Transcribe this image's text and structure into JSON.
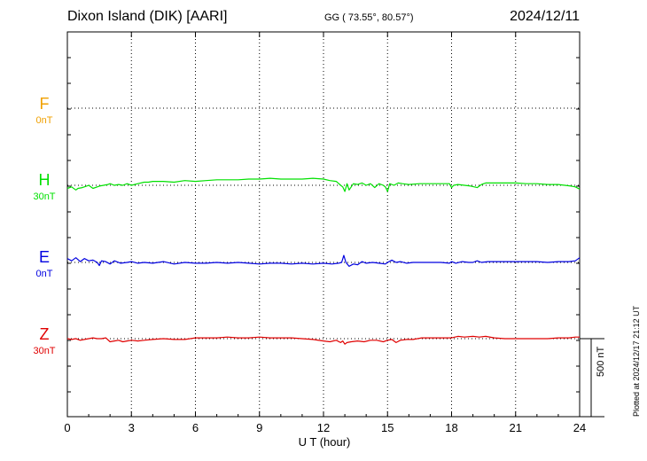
{
  "header": {
    "station": "Dixon Island (DIK)  [AARI]",
    "coords": "GG ( 73.55°,  80.57°)",
    "date": "2024/12/11"
  },
  "footer": {
    "plotted": "Plotted at 2024/12/17 21:12 UT",
    "scale": "500 nT"
  },
  "chart_data": {
    "type": "line",
    "xlabel": "U T (hour)",
    "xlim": [
      0,
      24
    ],
    "xticks": [
      0,
      3,
      6,
      9,
      12,
      15,
      18,
      21,
      24
    ],
    "grid": true,
    "scale_bar_nT": 500,
    "series": [
      {
        "name": "F",
        "baseline_label": "0nT",
        "color": "#f0a000",
        "x": [],
        "y": []
      },
      {
        "name": "H",
        "baseline_label": "30nT",
        "color": "#00e000",
        "x": [
          0.0,
          0.2,
          0.4,
          0.5,
          0.7,
          0.9,
          1.0,
          1.2,
          1.4,
          1.5,
          1.7,
          1.9,
          2.0,
          2.2,
          2.4,
          2.6,
          2.8,
          3.0,
          3.3,
          3.6,
          3.8,
          4.0,
          4.5,
          5.0,
          5.5,
          6.0,
          6.5,
          7.0,
          7.5,
          8.0,
          8.5,
          9.0,
          9.5,
          10.0,
          10.5,
          11.0,
          11.5,
          12.0,
          12.3,
          12.6,
          12.8,
          12.9,
          13.0,
          13.1,
          13.2,
          13.4,
          13.6,
          13.8,
          14.0,
          14.2,
          14.4,
          14.6,
          14.8,
          14.9,
          15.0,
          15.1,
          15.3,
          15.5,
          15.7,
          16.0,
          16.5,
          17.0,
          17.5,
          17.9,
          18.0,
          18.1,
          18.3,
          18.6,
          18.9,
          19.2,
          19.4,
          19.6,
          20.0,
          20.5,
          21.0,
          21.5,
          22.0,
          22.5,
          23.0,
          23.3,
          23.6,
          23.8,
          24.0
        ],
        "y": [
          -20,
          -10,
          -30,
          -20,
          -15,
          -5,
          0,
          -20,
          -10,
          -5,
          0,
          5,
          10,
          0,
          5,
          0,
          10,
          0,
          10,
          20,
          20,
          25,
          25,
          20,
          30,
          25,
          30,
          35,
          35,
          35,
          40,
          40,
          45,
          40,
          40,
          40,
          45,
          40,
          30,
          25,
          0,
          -10,
          -40,
          10,
          -30,
          10,
          5,
          15,
          0,
          10,
          -15,
          10,
          0,
          -10,
          -40,
          10,
          0,
          15,
          10,
          5,
          10,
          10,
          10,
          10,
          -15,
          0,
          5,
          0,
          -5,
          -15,
          5,
          15,
          15,
          15,
          15,
          10,
          10,
          5,
          5,
          0,
          -5,
          -10,
          -25
        ]
      },
      {
        "name": "E",
        "baseline_label": "0nT",
        "color": "#0000e0",
        "x": [
          0.0,
          0.2,
          0.4,
          0.6,
          0.8,
          1.0,
          1.2,
          1.4,
          1.5,
          1.6,
          1.8,
          2.0,
          2.2,
          2.5,
          2.8,
          3.0,
          3.3,
          3.6,
          4.0,
          4.5,
          5.0,
          5.5,
          6.0,
          6.5,
          7.0,
          7.5,
          8.0,
          8.5,
          9.0,
          9.5,
          10.0,
          10.5,
          11.0,
          11.5,
          12.0,
          12.4,
          12.7,
          12.85,
          12.95,
          13.05,
          13.2,
          13.4,
          13.6,
          13.8,
          14.0,
          14.3,
          14.6,
          14.9,
          15.0,
          15.2,
          15.4,
          15.6,
          15.9,
          16.2,
          16.5,
          17.0,
          17.5,
          17.9,
          18.0,
          18.2,
          18.5,
          18.8,
          19.0,
          19.2,
          19.4,
          19.7,
          20.0,
          20.5,
          21.0,
          21.5,
          22.0,
          22.5,
          23.0,
          23.5,
          23.8,
          24.0
        ],
        "y": [
          25,
          10,
          30,
          5,
          25,
          10,
          15,
          0,
          -20,
          10,
          5,
          -10,
          10,
          -5,
          0,
          5,
          -5,
          0,
          -5,
          5,
          -10,
          0,
          -5,
          -5,
          0,
          -5,
          0,
          -5,
          -10,
          -5,
          -5,
          -10,
          -5,
          -10,
          -5,
          -10,
          -5,
          0,
          45,
          0,
          -25,
          -10,
          -15,
          5,
          -5,
          0,
          -5,
          -10,
          0,
          15,
          0,
          5,
          -5,
          0,
          0,
          0,
          0,
          -5,
          5,
          -5,
          5,
          0,
          0,
          10,
          0,
          5,
          5,
          5,
          5,
          5,
          5,
          0,
          5,
          5,
          10,
          30
        ]
      },
      {
        "name": "Z",
        "baseline_label": "30nT",
        "color": "#e00000",
        "x": [
          0.0,
          0.2,
          0.4,
          0.6,
          0.8,
          1.0,
          1.2,
          1.4,
          1.6,
          1.8,
          2.0,
          2.2,
          2.4,
          2.6,
          2.8,
          3.0,
          3.3,
          3.6,
          4.0,
          4.5,
          5.0,
          5.5,
          6.0,
          6.5,
          7.0,
          7.5,
          8.0,
          8.5,
          9.0,
          9.5,
          10.0,
          10.5,
          11.0,
          11.5,
          12.0,
          12.3,
          12.6,
          12.8,
          12.9,
          13.0,
          13.1,
          13.3,
          13.6,
          13.9,
          14.2,
          14.5,
          14.8,
          15.0,
          15.2,
          15.4,
          15.6,
          15.9,
          16.2,
          16.6,
          17.0,
          17.5,
          18.0,
          18.3,
          18.6,
          19.0,
          19.3,
          19.6,
          20.0,
          20.5,
          21.0,
          21.5,
          22.0,
          22.5,
          23.0,
          23.5,
          23.8,
          24.0
        ],
        "y": [
          0,
          -5,
          0,
          -10,
          -5,
          0,
          5,
          0,
          0,
          5,
          -20,
          -15,
          -10,
          -20,
          -15,
          -10,
          -15,
          -10,
          -5,
          0,
          -5,
          -5,
          5,
          5,
          5,
          10,
          5,
          5,
          10,
          5,
          5,
          5,
          0,
          -5,
          -15,
          -20,
          -10,
          -25,
          -15,
          -35,
          -25,
          -20,
          -15,
          -20,
          -10,
          -10,
          -20,
          -10,
          -5,
          -25,
          -10,
          -5,
          -5,
          5,
          5,
          5,
          5,
          15,
          10,
          15,
          10,
          15,
          5,
          0,
          0,
          0,
          0,
          0,
          5,
          5,
          10,
          10
        ]
      }
    ]
  }
}
